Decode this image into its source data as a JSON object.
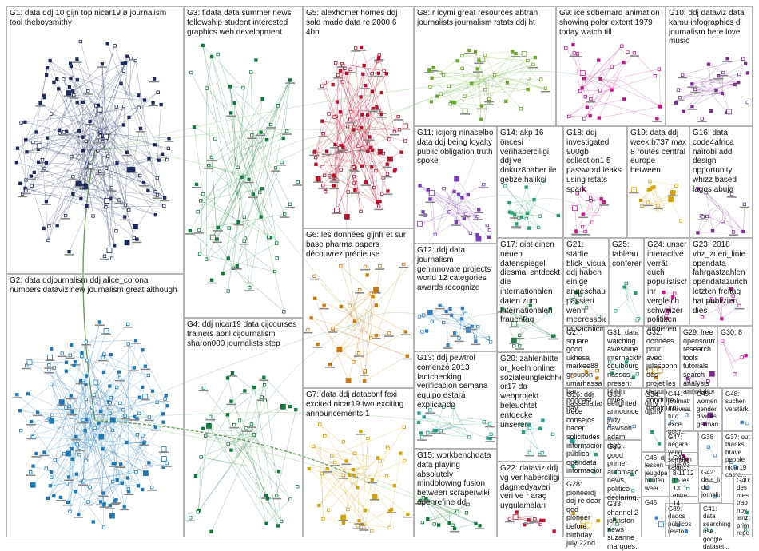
{
  "graph": {
    "background": "#ffffff",
    "box_border_color": "#b5b5b5",
    "groups": [
      {
        "id": "G1",
        "label": "G1: data ddj 10 gijn top nicar19 ø journalism tool theboysmithy",
        "color": "#1d2a5c"
      },
      {
        "id": "G2",
        "label": "G2: data ddjournalism ddj alice_corona numbers dataviz new journalism great although",
        "color": "#1f78b4"
      },
      {
        "id": "G3",
        "label": "G3: fidata data summer news fellowship student interested graphics web development",
        "color": "#117a3c"
      },
      {
        "id": "G4",
        "label": "G4: ddj nicar19 data cijcourses trainers april cijournalism sharon000 journalists step",
        "color": "#117a3c"
      },
      {
        "id": "G5",
        "label": "G5: alexhomer homes ddj sold made data re 2000 6 4bn",
        "color": "#b5122b"
      },
      {
        "id": "G6",
        "label": "G6: les données gijnfr et sur base pharma papers découvrez précieuse",
        "color": "#c9780c"
      },
      {
        "id": "G7",
        "label": "G7: data ddj dataconf fexi excited nicar19 two exciting announcements 1",
        "color": "#d4a20c"
      },
      {
        "id": "G8",
        "label": "G8: r icymi great resources abtran journalists journalism rstats ddj ht",
        "color": "#6aa82a"
      },
      {
        "id": "G9",
        "label": "G9: ice sdbernard animation showing polar extent 1979 today watch till",
        "color": "#c21a8a"
      },
      {
        "id": "G10",
        "label": "G10: ddj dataviz data kamu infographics dj journalism here love music",
        "color": "#7a2e8c"
      },
      {
        "id": "G11",
        "label": "G11: icijorg ninaselbo data ddj being loyalty public obligation truth spoke",
        "color": "#7a3cb5"
      },
      {
        "id": "G12",
        "label": "G12: ddj data journalism geninnovate projects world 12 categories awards recognize",
        "color": "#3a7fc2"
      },
      {
        "id": "G13",
        "label": "G13: ddj pewtrol comenzó 2013 factchecking verificación semana equipo estará explicando",
        "color": "#2a9c8a"
      },
      {
        "id": "G14",
        "label": "G14: akp 16 öncesi verihaberciligi ddj ve dokuz8haber ile gebze haliksi",
        "color": "#2a9c6a"
      },
      {
        "id": "G15",
        "label": "G15: workbenchdata data playing absolutely mindblowing fusion between scraperwiki openrefine ddj",
        "color": "#117a3c"
      },
      {
        "id": "G16",
        "label": "G16: data code4africa nairobi add design opportunity whizz based lagos abuja",
        "color": "#7a2e8c"
      },
      {
        "id": "G17",
        "label": "G17: gibt einen neuen datenspiegel diesmal entdeckt die internationalen daten zum internationalen frauentag",
        "color": "#2a7a4a"
      },
      {
        "id": "G18",
        "label": "G18: ddj investigated 900gb collection1 5 password leaks using rstats spark",
        "color": "#c21a8a"
      },
      {
        "id": "G19",
        "label": "G19: data ddj week b737 max 8 routes central europe between",
        "color": "#d4a20c"
      },
      {
        "id": "G20",
        "label": "G20: zahlenbitte or_koeln online sozialeungleichheit or17 da webprojekt beleuchtet entdecke unserer",
        "color": "#2a9c8a"
      },
      {
        "id": "G21",
        "label": "G21: städte blick_visual ddj haben einige angeschaut passiert wenn meeresspiegel tatsächlich",
        "color": "#2a7a4a"
      },
      {
        "id": "G22",
        "label": "G22: dataviz ddj vg verihaberciligi dagmedyaveri veri ve r araç uygulamaları",
        "color": "#b5122b"
      },
      {
        "id": "G23",
        "label": "G23: 2018 vbz_zueri_linie opendata fahrgastzahlen opendatazurich letzten freitag hat publiziert dies",
        "color": "#c21a8a"
      },
      {
        "id": "G24",
        "label": "G24: unser interactive verrät euch populistisch ihr vergleich schweizer politiken anderen",
        "color": "#c21a8a"
      },
      {
        "id": "G25",
        "label": "G25: tableau conference",
        "color": "#2a9c6a"
      },
      {
        "id": "G26",
        "label": "G26: ddj hasselfallas trece consejos hacer solicitudes información pública opendata informaciónpú...",
        "color": "#2a9c8a"
      },
      {
        "id": "G27",
        "label": "G27: square good ukhesa markee88 groupon umarhassan96 bar podcast day",
        "color": "#c9780c"
      },
      {
        "id": "G28",
        "label": "G28: pioneerdj ddj re dear god pioneer before birthday july 22nd",
        "color": "#d4a20c"
      },
      {
        "id": "G29",
        "label": "G29: free opensource research tools tutorials search analysis annotation...",
        "color": "#7a2e8c"
      },
      {
        "id": "G30",
        "label": "G30: 8",
        "color": "#c21a8a"
      },
      {
        "id": "G31",
        "label": "G31: data watching awesome interhacktiv cguibourg nassos_ present hhldn gives...",
        "color": "#2a9c6a"
      },
      {
        "id": "G32",
        "label": "G32: données pour avec julesbonnard des projet les depuis conduire datajournal...",
        "color": "#c9780c"
      },
      {
        "id": "G33",
        "label": "G33: channel 2 johnston news suzanne marques...",
        "color": "#2a7a4a"
      },
      {
        "id": "G34",
        "label": "G34: dirty djprivet...",
        "color": "#2a9c6a"
      },
      {
        "id": "G35",
        "label": "G35: delighted announce judy dawson adam rhys...",
        "color": "#3a7fc2"
      },
      {
        "id": "G36",
        "label": "G36: good primer automation news politico declaring...",
        "color": "#2a9c6a"
      },
      {
        "id": "G37",
        "label": "G37: out thanks brave people nicar19 came...",
        "color": "#1f78b4"
      },
      {
        "id": "G38",
        "label": "G38",
        "color": "#3a7fc2"
      },
      {
        "id": "G39",
        "label": "G39: dados públicos relato...",
        "color": "#3a7fc2"
      },
      {
        "id": "G40",
        "label": "G40: des mes trab hoy lanzo prim repo...",
        "color": "#2a9c6a"
      },
      {
        "id": "G41",
        "label": "G41: data searching use google dataset...",
        "color": "#2a9c8a"
      },
      {
        "id": "G42",
        "label": "G42: data_labe ddj jornalismo...",
        "color": "#3a7fc2"
      },
      {
        "id": "G43",
        "label": "G43: ddj 03 8-11 12 15 les 13 entre 14",
        "color": "#2a9c6a"
      },
      {
        "id": "G44",
        "label": "G44: joelmatri nouveau tuto excel pour...",
        "color": "#3a7fc2"
      },
      {
        "id": "G45",
        "label": "G45",
        "color": "#3a7fc2"
      },
      {
        "id": "G46",
        "label": "G46: dj lessen jeugdpas houten weer...",
        "color": "#2a9c6a"
      },
      {
        "id": "G47",
        "label": "G47: negara yang semakin kalau...",
        "color": "#c21a8a"
      },
      {
        "id": "G48",
        "label": "G48: suchen verstärk...",
        "color": "#3a7fc2"
      },
      {
        "id": "G49",
        "label": "G49: women gender divides german...",
        "color": "#7a2e8c"
      }
    ]
  }
}
